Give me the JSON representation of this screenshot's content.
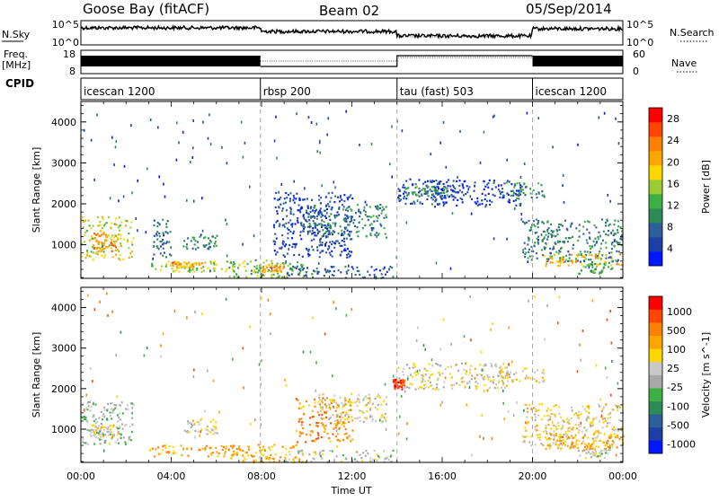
{
  "header": {
    "station": "Goose Bay (fitACF)",
    "beam": "Beam 02",
    "date": "05/Sep/2014"
  },
  "left_labels": {
    "nsky": "N.Sky",
    "freq": "Freq.",
    "freq_unit": "[MHz]",
    "cpid": "CPID"
  },
  "right_labels": {
    "nsearch": "N.Search",
    "nave": "Nave"
  },
  "noise_panel": {
    "left_ticks": [
      "10^5",
      "10^0"
    ],
    "right_ticks": [
      "10^5",
      "10^0"
    ]
  },
  "freq_panel": {
    "left_ticks": [
      "18",
      "8"
    ],
    "right_ticks": [
      "60",
      "0"
    ]
  },
  "cpid_segments": [
    {
      "label": "icescan 1200",
      "start_hour": 0
    },
    {
      "label": "rbsp 200",
      "start_hour": 7.95
    },
    {
      "label": "tau (fast) 503",
      "start_hour": 14
    },
    {
      "label": "icescan 1200",
      "start_hour": 20
    }
  ],
  "time_axis": {
    "label": "Time UT",
    "ticks": [
      "00:00",
      "04:00",
      "08:00",
      "12:00",
      "16:00",
      "20:00",
      "00:00"
    ]
  },
  "chart_data": [
    {
      "type": "heatmap",
      "name": "power-panel",
      "ylabel": "Slant Range [km]",
      "yticks": [
        1000,
        2000,
        3000,
        4000
      ],
      "ylim": [
        180,
        4500
      ],
      "xlim_hours": [
        0,
        24
      ],
      "colorbar": {
        "label": "Power [dB]",
        "ticks": [
          "4",
          "8",
          "12",
          "16",
          "20",
          "24",
          "28"
        ],
        "colors": [
          "#0018ff",
          "#1e3fa8",
          "#2d5f9a",
          "#2e8b57",
          "#3cb043",
          "#9acd32",
          "#ffd700",
          "#ffa500",
          "#ff7f00",
          "#ff4500",
          "#ff0000"
        ]
      },
      "regions": [
        {
          "t0": 0.0,
          "t1": 2.3,
          "r0": 650,
          "r1": 1700,
          "level": 0.55
        },
        {
          "t0": 0.5,
          "t1": 1.6,
          "r0": 850,
          "r1": 1300,
          "level": 0.75
        },
        {
          "t0": 3.0,
          "t1": 7.0,
          "r0": 350,
          "r1": 620,
          "level": 0.5
        },
        {
          "t0": 4.0,
          "t1": 5.5,
          "r0": 450,
          "r1": 600,
          "level": 0.7
        },
        {
          "t0": 4.5,
          "t1": 6.0,
          "r0": 900,
          "r1": 1250,
          "level": 0.3
        },
        {
          "t0": 3.2,
          "t1": 4.0,
          "r0": 700,
          "r1": 1700,
          "level": 0.25
        },
        {
          "t0": 6.5,
          "t1": 9.8,
          "r0": 200,
          "r1": 650,
          "level": 0.45
        },
        {
          "t0": 8.0,
          "t1": 9.0,
          "r0": 350,
          "r1": 550,
          "level": 0.7
        },
        {
          "t0": 8.5,
          "t1": 12.0,
          "r0": 700,
          "r1": 2300,
          "level": 0.15
        },
        {
          "t0": 10.0,
          "t1": 13.5,
          "r0": 1200,
          "r1": 2000,
          "level": 0.3
        },
        {
          "t0": 9.0,
          "t1": 13.8,
          "r0": 200,
          "r1": 500,
          "level": 0.2
        },
        {
          "t0": 14.0,
          "t1": 16.5,
          "r0": 2000,
          "r1": 2650,
          "level": 0.18
        },
        {
          "t0": 15.5,
          "t1": 19.5,
          "r0": 1950,
          "r1": 2600,
          "level": 0.12
        },
        {
          "t0": 18.5,
          "t1": 20.5,
          "r0": 2150,
          "r1": 2550,
          "level": 0.3
        },
        {
          "t0": 14.3,
          "t1": 16.2,
          "r0": 2200,
          "r1": 2450,
          "level": 0.35
        },
        {
          "t0": 19.5,
          "t1": 24.0,
          "r0": 600,
          "r1": 1650,
          "level": 0.3
        },
        {
          "t0": 20.5,
          "t1": 24.0,
          "r0": 500,
          "r1": 800,
          "level": 0.65
        },
        {
          "t0": 22.0,
          "t1": 23.5,
          "r0": 300,
          "r1": 600,
          "level": 0.4
        }
      ]
    },
    {
      "type": "heatmap",
      "name": "velocity-panel",
      "ylabel": "Slant Range [km]",
      "yticks": [
        1000,
        2000,
        3000,
        4000
      ],
      "ylim": [
        180,
        4500
      ],
      "xlim_hours": [
        0,
        24
      ],
      "colorbar": {
        "label": "Velocity [m s^-1]",
        "ticks": [
          "1000",
          "500",
          "100",
          "25",
          "-25",
          "-100",
          "-500",
          "-1000"
        ],
        "colors": [
          "#0018ff",
          "#1e3fa8",
          "#2d5f9a",
          "#2e8b57",
          "#3cb043",
          "#a8a8a8",
          "#c8c8c8",
          "#ffd700",
          "#ffa500",
          "#ff7f00",
          "#ff4500",
          "#ff0000"
        ]
      },
      "regions": [
        {
          "t0": 0.0,
          "t1": 2.3,
          "r0": 650,
          "r1": 1700,
          "level": 0.45
        },
        {
          "t0": 0.4,
          "t1": 1.5,
          "r0": 800,
          "r1": 1200,
          "level": 0.6
        },
        {
          "t0": 3.0,
          "t1": 7.0,
          "r0": 350,
          "r1": 620,
          "level": 0.72
        },
        {
          "t0": 4.5,
          "t1": 6.0,
          "r0": 900,
          "r1": 1250,
          "level": 0.55
        },
        {
          "t0": 6.5,
          "t1": 9.8,
          "r0": 200,
          "r1": 650,
          "level": 0.7
        },
        {
          "t0": 9.5,
          "t1": 12.0,
          "r0": 700,
          "r1": 1800,
          "level": 0.75
        },
        {
          "t0": 10.5,
          "t1": 13.5,
          "r0": 1200,
          "r1": 1900,
          "level": 0.55
        },
        {
          "t0": 9.0,
          "t1": 13.8,
          "r0": 200,
          "r1": 500,
          "level": 0.5
        },
        {
          "t0": 14.0,
          "t1": 19.0,
          "r0": 2000,
          "r1": 2650,
          "level": 0.55
        },
        {
          "t0": 13.8,
          "t1": 14.3,
          "r0": 2000,
          "r1": 2250,
          "level": 0.9
        },
        {
          "t0": 18.5,
          "t1": 20.5,
          "r0": 2150,
          "r1": 2550,
          "level": 0.62
        },
        {
          "t0": 19.5,
          "t1": 24.0,
          "r0": 600,
          "r1": 1650,
          "level": 0.6
        },
        {
          "t0": 20.5,
          "t1": 24.0,
          "r0": 500,
          "r1": 900,
          "level": 0.72
        },
        {
          "t0": 22.0,
          "t1": 23.5,
          "r0": 300,
          "r1": 600,
          "level": 0.5
        }
      ]
    }
  ]
}
